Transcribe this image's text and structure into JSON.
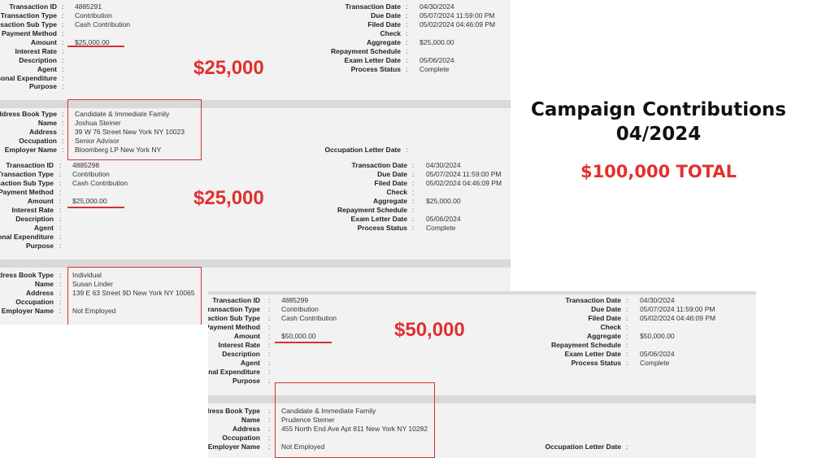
{
  "side": {
    "title_line1": "Campaign Contributions",
    "title_line2": "04/2024",
    "total": "$100,000 TOTAL"
  },
  "labels": {
    "transaction_id": "Transaction ID",
    "transaction_type": "Transaction Type",
    "transaction_sub_type": "Transaction Sub Type",
    "payment_method": "Payment Method",
    "amount": "Amount",
    "interest_rate": "Interest Rate",
    "description": "Description",
    "agent": "Agent",
    "personal_expenditure": "Personal Expenditure",
    "purpose": "Purpose",
    "address_book_type": "Address Book Type",
    "name": "Name",
    "address": "Address",
    "occupation": "Occupation",
    "employer_name": "Employer Name",
    "transaction_date": "Transaction Date",
    "due_date": "Due Date",
    "filed_date": "Filed Date",
    "check": "Check",
    "aggregate": "Aggregate",
    "repayment_schedule": "Repayment Schedule",
    "exam_letter_date": "Exam Letter Date",
    "process_status": "Process Status",
    "occupation_letter_date": "Occupation Letter Date",
    "colon": ":"
  },
  "records": [
    {
      "callout": "$25,000",
      "transaction_id": "4885291",
      "transaction_type": "Contribution",
      "transaction_sub_type": "Cash Contribution",
      "amount": "$25,000.00",
      "transaction_date": "04/30/2024",
      "due_date": "05/07/2024 11:59:00 PM",
      "filed_date": "05/02/2024 04:46:09 PM",
      "aggregate": "$25,000.00",
      "exam_letter_date": "05/06/2024",
      "process_status": "Complete",
      "address_book_type": "Candidate & Immediate Family",
      "name": "Joshua Steiner",
      "address": "39 W 76 Street New York NY 10023",
      "occupation": "Senior Advisor",
      "employer_name": "Bloomberg LP New York NY"
    },
    {
      "callout": "$25,000",
      "transaction_id": "4885298",
      "transaction_type": "Contribution",
      "transaction_sub_type": "Cash Contribution",
      "amount": "$25,000.00",
      "transaction_date": "04/30/2024",
      "due_date": "05/07/2024 11:59:00 PM",
      "filed_date": "05/02/2024 04:46:09 PM",
      "aggregate": "$25,000.00",
      "exam_letter_date": "05/06/2024",
      "process_status": "Complete",
      "address_book_type": "Individual",
      "name": "Susan Linder",
      "address": "139 E 63 Street 9D New York NY 10065",
      "occupation": "",
      "employer_name": "Not Employed"
    },
    {
      "callout": "$50,000",
      "transaction_id": "4885299",
      "transaction_type": "Contribution",
      "transaction_sub_type": "Cash Contribution",
      "amount": "$50,000.00",
      "transaction_date": "04/30/2024",
      "due_date": "05/07/2024 11:59:00 PM",
      "filed_date": "05/02/2024 04:46:09 PM",
      "aggregate": "$50,000.00",
      "exam_letter_date": "05/06/2024",
      "process_status": "Complete",
      "address_book_type": "Candidate & Immediate Family",
      "name": "Prudence Steiner",
      "address": "455 North End Ave Apt 811 New York NY 10282",
      "occupation": "",
      "employer_name": "Not Employed"
    }
  ]
}
